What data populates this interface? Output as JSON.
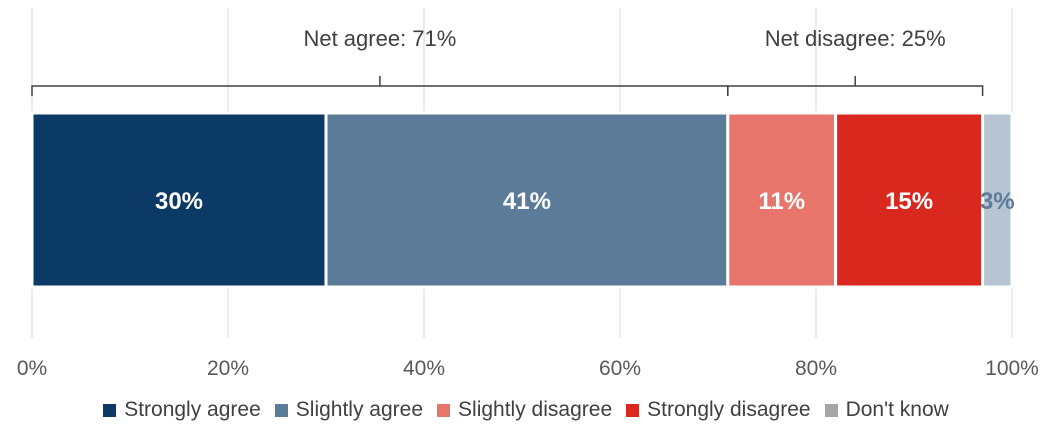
{
  "chart_data": {
    "type": "bar",
    "orientation": "horizontal-stacked",
    "title": "",
    "xlabel": "",
    "ylabel": "",
    "xlim": [
      0,
      100
    ],
    "ticks": [
      "0%",
      "20%",
      "40%",
      "60%",
      "80%",
      "100%"
    ],
    "tick_values": [
      0,
      20,
      40,
      60,
      80,
      100
    ],
    "grid": true,
    "legend_position": "bottom",
    "series": [
      {
        "name": "Strongly agree",
        "value": 30,
        "label": "30%",
        "color": "#0b3a66",
        "label_color": "#ffffff"
      },
      {
        "name": "Slightly agree",
        "value": 41,
        "label": "41%",
        "color": "#5b7b99",
        "label_color": "#ffffff"
      },
      {
        "name": "Slightly disagree",
        "value": 11,
        "label": "11%",
        "color": "#e8756c",
        "label_color": "#ffffff"
      },
      {
        "name": "Strongly disagree",
        "value": 15,
        "label": "15%",
        "color": "#d9281e",
        "label_color": "#ffffff"
      },
      {
        "name": "Don't know",
        "value": 3,
        "label": "3%",
        "color": "#b7c4d1",
        "label_color": "#5b7b99"
      }
    ],
    "annotations": [
      {
        "text": "Net agree: 71%",
        "from": 0,
        "to": 71
      },
      {
        "text": "Net disagree: 25%",
        "from": 71,
        "to": 97
      }
    ]
  },
  "legend": {
    "items": [
      {
        "label": "Strongly agree",
        "color": "#0b3a66"
      },
      {
        "label": "Slightly agree",
        "color": "#5b7b99"
      },
      {
        "label": "Slightly disagree",
        "color": "#e8756c"
      },
      {
        "label": "Strongly disagree",
        "color": "#d9281e"
      },
      {
        "label": "Don't know",
        "color": "#a6a6a6"
      }
    ]
  }
}
